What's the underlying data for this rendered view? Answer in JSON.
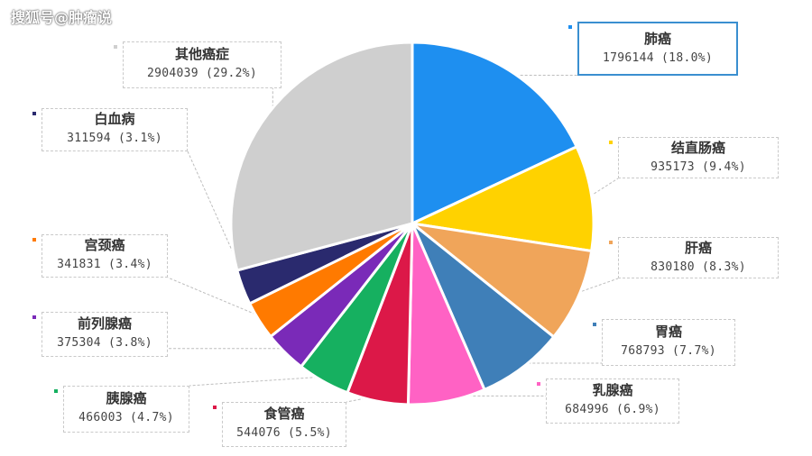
{
  "watermark": "搜狐号@肿瘤说",
  "chart_data": {
    "type": "pie",
    "slices": [
      {
        "name": "肺癌",
        "value": 1796144,
        "label": "1796144 (18.0%)",
        "color": "#1e8ff0"
      },
      {
        "name": "结直肠癌",
        "value": 935173,
        "label": "935173 (9.4%)",
        "color": "#ffd200"
      },
      {
        "name": "肝癌",
        "value": 830180,
        "label": "830180 (8.3%)",
        "color": "#f0a55a"
      },
      {
        "name": "胃癌",
        "value": 768793,
        "label": "768793 (7.7%)",
        "color": "#3f7fb8"
      },
      {
        "name": "乳腺癌",
        "value": 684996,
        "label": "684996 (6.9%)",
        "color": "#ff62c4"
      },
      {
        "name": "食管癌",
        "value": 544076,
        "label": "544076 (5.5%)",
        "color": "#dc1848"
      },
      {
        "name": "胰腺癌",
        "value": 466003,
        "label": "466003 (4.7%)",
        "color": "#16b060"
      },
      {
        "name": "前列腺癌",
        "value": 375304,
        "label": "375304 (3.8%)",
        "color": "#7a2ab8"
      },
      {
        "name": "宫颈癌",
        "value": 341831,
        "label": "341831 (3.4%)",
        "color": "#ff7a00"
      },
      {
        "name": "白血病",
        "value": 311594,
        "label": "311594 (3.1%)",
        "color": "#2a2a6e"
      },
      {
        "name": "其他癌症",
        "value": 2904039,
        "label": "2904039 (29.2%)",
        "color": "#cfcfcf"
      }
    ]
  }
}
